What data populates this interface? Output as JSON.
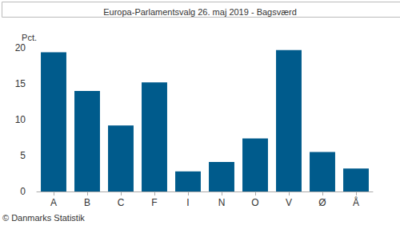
{
  "chart_data": {
    "type": "bar",
    "title": "Europa-Parlamentsvalg 26. maj 2019 - Bagsværd",
    "y_label": "Pct.",
    "annotation": "© Danmarks Statistik",
    "categories": [
      "A",
      "B",
      "C",
      "F",
      "I",
      "N",
      "O",
      "V",
      "Ø",
      "Å"
    ],
    "values": [
      19.4,
      14.0,
      9.2,
      15.2,
      2.8,
      4.1,
      7.4,
      19.7,
      5.5,
      3.2
    ],
    "color": "#005b8c",
    "ylim": [
      0,
      20
    ],
    "yticks": [
      0,
      5,
      10,
      15,
      20
    ],
    "grid": false
  }
}
